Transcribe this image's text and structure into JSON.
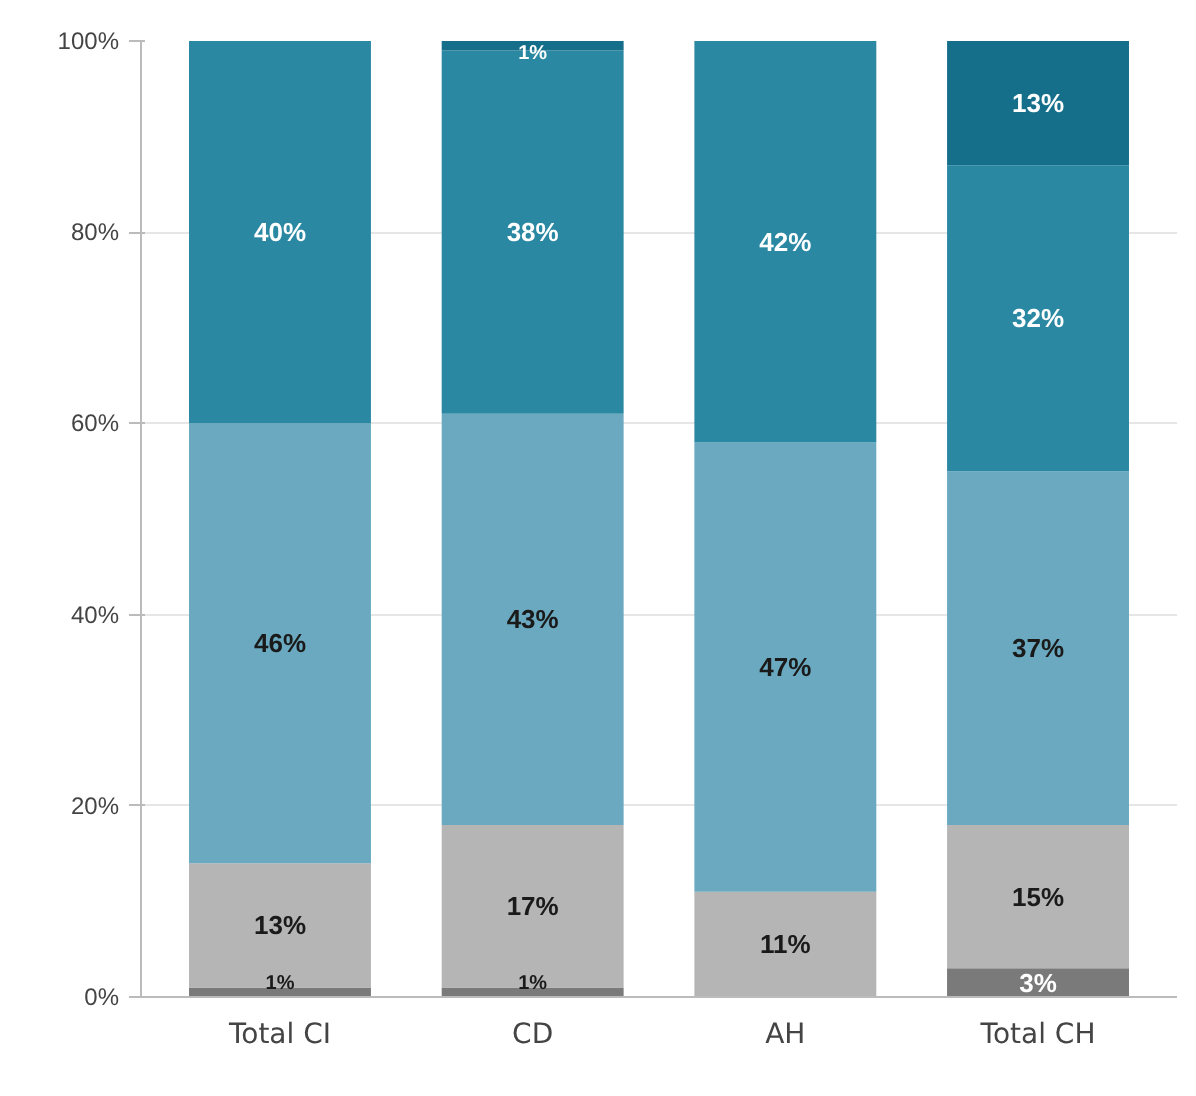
{
  "chart_data": {
    "type": "bar",
    "stacked": true,
    "categories": [
      "Total CI",
      "CD",
      "AH",
      "Total CH"
    ],
    "series": [
      {
        "color": "#7a7a7a",
        "values": [
          1,
          1,
          0,
          3
        ],
        "value_labels": [
          "1%",
          "1%",
          null,
          "3%"
        ]
      },
      {
        "color": "#b5b5b5",
        "values": [
          13,
          17,
          11,
          15
        ],
        "value_labels": [
          "13%",
          "17%",
          "11%",
          "15%"
        ]
      },
      {
        "color": "#6aa9bf",
        "values": [
          46,
          43,
          47,
          37
        ],
        "value_labels": [
          "46%",
          "43%",
          "47%",
          "37%"
        ]
      },
      {
        "color": "#2a88a3",
        "values": [
          40,
          38,
          42,
          32
        ],
        "value_labels": [
          "40%",
          "38%",
          "42%",
          "32%"
        ]
      },
      {
        "color": "#166f8a",
        "values": [
          0,
          1,
          0,
          13
        ],
        "value_labels": [
          null,
          "1%",
          null,
          "13%"
        ]
      }
    ],
    "ylim": [
      0,
      100
    ],
    "yticks": [
      {
        "value": 0,
        "label": "0%"
      },
      {
        "value": 20,
        "label": "20%"
      },
      {
        "value": 40,
        "label": "40%"
      },
      {
        "value": 60,
        "label": "60%"
      },
      {
        "value": 80,
        "label": "80%"
      },
      {
        "value": 100,
        "label": "100%"
      }
    ],
    "grid": "y"
  }
}
